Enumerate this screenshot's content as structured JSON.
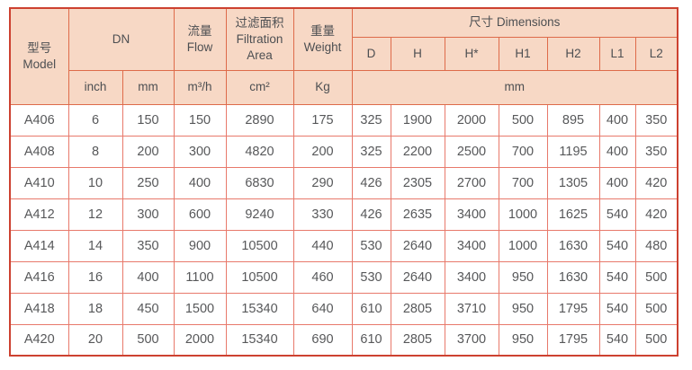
{
  "colors": {
    "header_bg": "#f7d8c5",
    "header_border": "#de6b4a",
    "outer_border": "#cd4130",
    "data_border": "#e8796b",
    "header_text": "#4d4f52",
    "data_text": "#57585a"
  },
  "table": {
    "header": {
      "model_zh": "型号",
      "model_en": "Model",
      "dn": "DN",
      "flow_zh": "流量",
      "flow_en": "Flow",
      "filtration_zh": "过滤面积",
      "filtration_en": "Filtration Area",
      "weight_zh": "重量",
      "weight_en": "Weight",
      "dimensions": "尺寸 Dimensions",
      "dim_cols": [
        "D",
        "H",
        "H*",
        "H1",
        "H2",
        "L1",
        "L2"
      ],
      "unit_inch": "inch",
      "unit_mm": "mm",
      "unit_flow": "m³/h",
      "unit_area": "cm²",
      "unit_weight": "Kg",
      "unit_dims": "mm"
    },
    "rows": [
      {
        "model": "A406",
        "dn_inch": "6",
        "dn_mm": "150",
        "flow": "150",
        "area": "2890",
        "weight": "175",
        "dims": [
          "325",
          "1900",
          "2000",
          "500",
          "895",
          "400",
          "350"
        ]
      },
      {
        "model": "A408",
        "dn_inch": "8",
        "dn_mm": "200",
        "flow": "300",
        "area": "4820",
        "weight": "200",
        "dims": [
          "325",
          "2200",
          "2500",
          "700",
          "1195",
          "400",
          "350"
        ]
      },
      {
        "model": "A410",
        "dn_inch": "10",
        "dn_mm": "250",
        "flow": "400",
        "area": "6830",
        "weight": "290",
        "dims": [
          "426",
          "2305",
          "2700",
          "700",
          "1305",
          "400",
          "420"
        ]
      },
      {
        "model": "A412",
        "dn_inch": "12",
        "dn_mm": "300",
        "flow": "600",
        "area": "9240",
        "weight": "330",
        "dims": [
          "426",
          "2635",
          "3400",
          "1000",
          "1625",
          "540",
          "420"
        ]
      },
      {
        "model": "A414",
        "dn_inch": "14",
        "dn_mm": "350",
        "flow": "900",
        "area": "10500",
        "weight": "440",
        "dims": [
          "530",
          "2640",
          "3400",
          "1000",
          "1630",
          "540",
          "480"
        ]
      },
      {
        "model": "A416",
        "dn_inch": "16",
        "dn_mm": "400",
        "flow": "1100",
        "area": "10500",
        "weight": "460",
        "dims": [
          "530",
          "2640",
          "3400",
          "950",
          "1630",
          "540",
          "500"
        ]
      },
      {
        "model": "A418",
        "dn_inch": "18",
        "dn_mm": "450",
        "flow": "1500",
        "area": "15340",
        "weight": "640",
        "dims": [
          "610",
          "2805",
          "3710",
          "950",
          "1795",
          "540",
          "500"
        ]
      },
      {
        "model": "A420",
        "dn_inch": "20",
        "dn_mm": "500",
        "flow": "2000",
        "area": "15340",
        "weight": "690",
        "dims": [
          "610",
          "2805",
          "3700",
          "950",
          "1795",
          "540",
          "500"
        ]
      }
    ]
  }
}
